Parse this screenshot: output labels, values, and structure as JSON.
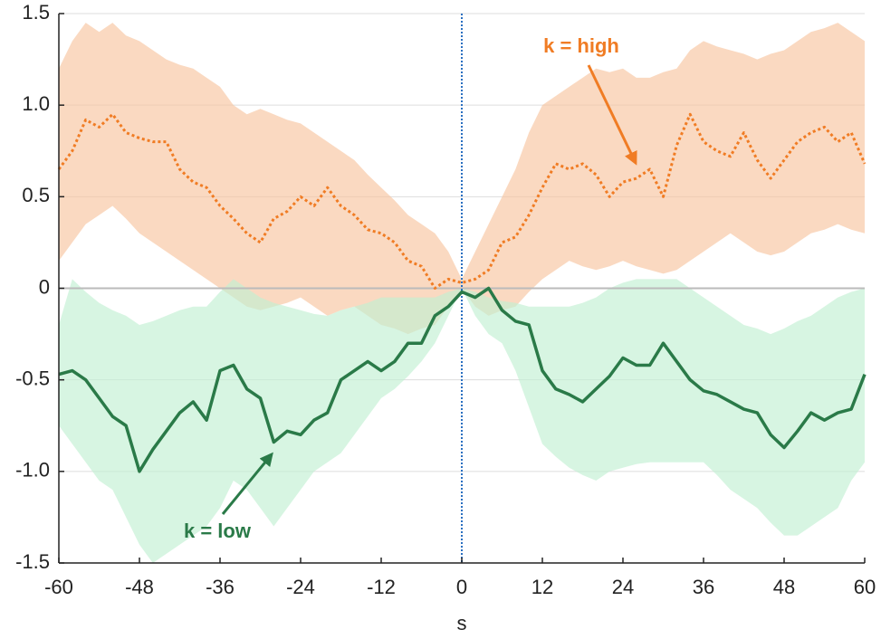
{
  "chart_data": {
    "type": "line",
    "xlabel": "s",
    "x": [
      -60,
      -58,
      -56,
      -54,
      -52,
      -50,
      -48,
      -46,
      -44,
      -42,
      -40,
      -38,
      -36,
      -34,
      -32,
      -30,
      -28,
      -26,
      -24,
      -22,
      -20,
      -18,
      -16,
      -14,
      -12,
      -10,
      -8,
      -6,
      -4,
      -2,
      0,
      2,
      4,
      6,
      8,
      10,
      12,
      14,
      16,
      18,
      20,
      22,
      24,
      26,
      28,
      30,
      32,
      34,
      36,
      38,
      40,
      42,
      44,
      46,
      48,
      50,
      52,
      54,
      56,
      58,
      60
    ],
    "xlim": [
      -60,
      60
    ],
    "xticks": [
      -60,
      -48,
      -36,
      -24,
      -12,
      0,
      12,
      24,
      36,
      48,
      60
    ],
    "ylim": [
      -1.5,
      1.5
    ],
    "yticks": [
      {
        "value": -1.5,
        "label": "-1.5"
      },
      {
        "value": -1,
        "label": "-1.0"
      },
      -0.5,
      0,
      0.5,
      {
        "value": 1,
        "label": "1.0"
      },
      1.5
    ],
    "grid": true,
    "series": [
      {
        "name": "k = high",
        "color": "#f07c24",
        "band_color": "#f8c4a0",
        "linestyle": "dotted",
        "values": [
          0.65,
          0.75,
          0.92,
          0.88,
          0.95,
          0.85,
          0.82,
          0.8,
          0.8,
          0.65,
          0.58,
          0.55,
          0.45,
          0.38,
          0.3,
          0.25,
          0.38,
          0.42,
          0.5,
          0.45,
          0.55,
          0.45,
          0.4,
          0.32,
          0.3,
          0.25,
          0.15,
          0.12,
          0.0,
          0.05,
          0.03,
          0.05,
          0.1,
          0.25,
          0.28,
          0.4,
          0.55,
          0.68,
          0.65,
          0.68,
          0.62,
          0.5,
          0.58,
          0.6,
          0.65,
          0.5,
          0.78,
          0.95,
          0.8,
          0.75,
          0.72,
          0.85,
          0.7,
          0.6,
          0.7,
          0.8,
          0.85,
          0.88,
          0.8,
          0.85,
          0.68
        ],
        "upper": [
          1.2,
          1.35,
          1.45,
          1.4,
          1.45,
          1.38,
          1.35,
          1.3,
          1.25,
          1.22,
          1.2,
          1.15,
          1.1,
          1.0,
          0.95,
          0.98,
          0.95,
          0.92,
          0.9,
          0.85,
          0.8,
          0.75,
          0.7,
          0.62,
          0.55,
          0.48,
          0.4,
          0.35,
          0.3,
          0.2,
          0.05,
          0.2,
          0.35,
          0.5,
          0.65,
          0.85,
          1.0,
          1.05,
          1.1,
          1.15,
          1.2,
          1.18,
          1.2,
          1.15,
          1.15,
          1.18,
          1.2,
          1.3,
          1.35,
          1.32,
          1.3,
          1.28,
          1.25,
          1.28,
          1.3,
          1.35,
          1.4,
          1.42,
          1.45,
          1.4,
          1.35
        ],
        "lower": [
          0.15,
          0.25,
          0.35,
          0.4,
          0.45,
          0.38,
          0.3,
          0.25,
          0.2,
          0.15,
          0.1,
          0.05,
          0.0,
          -0.05,
          -0.1,
          -0.12,
          -0.1,
          -0.08,
          -0.05,
          -0.1,
          -0.15,
          -0.12,
          -0.1,
          -0.15,
          -0.2,
          -0.22,
          -0.25,
          -0.22,
          -0.2,
          -0.1,
          0.0,
          -0.1,
          -0.15,
          -0.12,
          -0.1,
          -0.02,
          0.05,
          0.1,
          0.15,
          0.12,
          0.1,
          0.12,
          0.15,
          0.12,
          0.1,
          0.08,
          0.1,
          0.15,
          0.2,
          0.25,
          0.3,
          0.25,
          0.2,
          0.18,
          0.2,
          0.25,
          0.3,
          0.32,
          0.35,
          0.32,
          0.3
        ]
      },
      {
        "name": "k = low",
        "color": "#2a7a48",
        "band_color": "#c2efd3",
        "linestyle": "solid",
        "values": [
          -0.47,
          -0.45,
          -0.5,
          -0.6,
          -0.7,
          -0.75,
          -1.0,
          -0.88,
          -0.78,
          -0.68,
          -0.62,
          -0.72,
          -0.45,
          -0.42,
          -0.55,
          -0.6,
          -0.84,
          -0.78,
          -0.8,
          -0.72,
          -0.68,
          -0.5,
          -0.45,
          -0.4,
          -0.45,
          -0.4,
          -0.3,
          -0.3,
          -0.15,
          -0.1,
          -0.02,
          -0.05,
          0.0,
          -0.12,
          -0.18,
          -0.2,
          -0.45,
          -0.55,
          -0.58,
          -0.62,
          -0.55,
          -0.48,
          -0.38,
          -0.42,
          -0.42,
          -0.3,
          -0.4,
          -0.5,
          -0.56,
          -0.58,
          -0.62,
          -0.66,
          -0.68,
          -0.8,
          -0.87,
          -0.78,
          -0.68,
          -0.72,
          -0.68,
          -0.66,
          -0.47
        ],
        "upper": [
          -0.2,
          0.05,
          -0.02,
          -0.08,
          -0.12,
          -0.15,
          -0.2,
          -0.18,
          -0.15,
          -0.12,
          -0.1,
          -0.1,
          -0.02,
          0.05,
          0.0,
          -0.05,
          -0.08,
          -0.1,
          -0.12,
          -0.14,
          -0.15,
          -0.12,
          -0.1,
          -0.08,
          -0.05,
          -0.05,
          -0.05,
          -0.05,
          -0.05,
          -0.02,
          0.0,
          -0.02,
          -0.05,
          -0.07,
          -0.08,
          -0.1,
          -0.1,
          -0.1,
          -0.1,
          -0.08,
          -0.05,
          0.0,
          0.03,
          0.05,
          0.05,
          0.05,
          0.05,
          0.0,
          -0.05,
          -0.1,
          -0.15,
          -0.2,
          -0.22,
          -0.25,
          -0.22,
          -0.18,
          -0.15,
          -0.1,
          -0.05,
          -0.02,
          0.0
        ],
        "lower": [
          -0.75,
          -0.85,
          -0.95,
          -1.05,
          -1.1,
          -1.25,
          -1.4,
          -1.5,
          -1.45,
          -1.4,
          -1.35,
          -1.3,
          -1.2,
          -1.05,
          -1.1,
          -1.2,
          -1.3,
          -1.2,
          -1.1,
          -1.0,
          -0.95,
          -0.9,
          -0.8,
          -0.7,
          -0.6,
          -0.55,
          -0.48,
          -0.4,
          -0.3,
          -0.15,
          0.0,
          -0.15,
          -0.25,
          -0.3,
          -0.45,
          -0.65,
          -0.85,
          -0.92,
          -0.98,
          -1.02,
          -1.05,
          -1.0,
          -0.98,
          -0.96,
          -0.95,
          -0.95,
          -0.95,
          -0.95,
          -0.95,
          -1.02,
          -1.1,
          -1.15,
          -1.2,
          -1.28,
          -1.35,
          -1.35,
          -1.3,
          -1.25,
          -1.2,
          -1.05,
          -0.95
        ]
      }
    ]
  }
}
